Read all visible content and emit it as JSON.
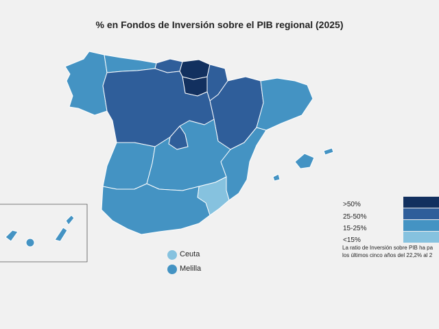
{
  "title": "% en Fondos de Inversión sobre el PIB regional (2025)",
  "colors": {
    "gt50": "#12305f",
    "c25_50": "#2f5e9a",
    "c15_25": "#4493c3",
    "lt15": "#86c2df"
  },
  "legend": [
    {
      "label": ">50%",
      "color": "#12305f"
    },
    {
      "label": "25-50%",
      "color": "#2f5e9a"
    },
    {
      "label": "15-25%",
      "color": "#4493c3"
    },
    {
      "label": "<15%",
      "color": "#86c2df"
    }
  ],
  "note_line1": "La ratio de Inversión sobre PIB ha pa",
  "note_line2": "los últimos cinco años del 22,2% al 2",
  "cities": [
    {
      "name": "Ceuta",
      "color": "#86c2df"
    },
    {
      "name": "Melilla",
      "color": "#4493c3"
    }
  ]
}
